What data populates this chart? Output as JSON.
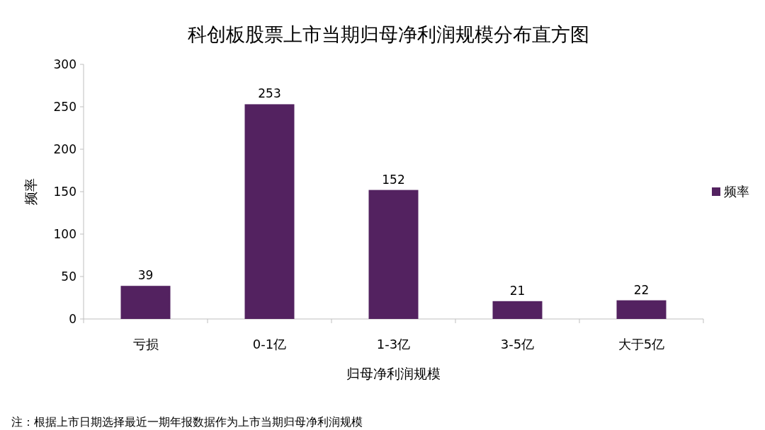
{
  "chart_data": {
    "type": "bar",
    "title": "科创板股票上市当期归母净利润规模分布直方图",
    "xlabel": "归母净利润规模",
    "ylabel": "频率",
    "categories": [
      "亏损",
      "0-1亿",
      "1-3亿",
      "3-5亿",
      "大于5亿"
    ],
    "series": [
      {
        "name": "频率",
        "color": "#532260",
        "values": [
          39,
          253,
          152,
          21,
          22
        ]
      }
    ],
    "ylim": [
      0,
      300
    ],
    "yticks": [
      0,
      50,
      100,
      150,
      200,
      250,
      300
    ],
    "grid": false,
    "legend": "right",
    "data_labels": true,
    "annotations": [
      "注：根据上市日期选择最近一期年报数据作为上市当期归母净利润规模"
    ]
  }
}
